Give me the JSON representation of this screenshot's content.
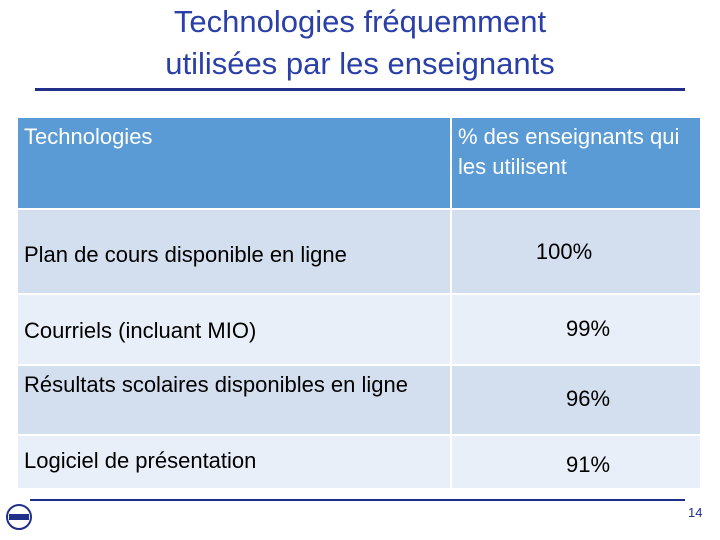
{
  "header": {
    "title_lines": [
      "Technologies fréquemment",
      "utilisées par les enseignants"
    ]
  },
  "table": {
    "columns": [
      "Technologies",
      "% des enseignants qui les utilisent"
    ],
    "rows": [
      [
        "Plan de cours disponible en ligne",
        "100%"
      ],
      [
        "Courriels (incluant MIO)",
        "99%"
      ],
      [
        "Résultats scolaires disponibles en ligne",
        "96%"
      ],
      [
        "Logiciel de présentation",
        "91%"
      ]
    ]
  },
  "page_number": "14"
}
